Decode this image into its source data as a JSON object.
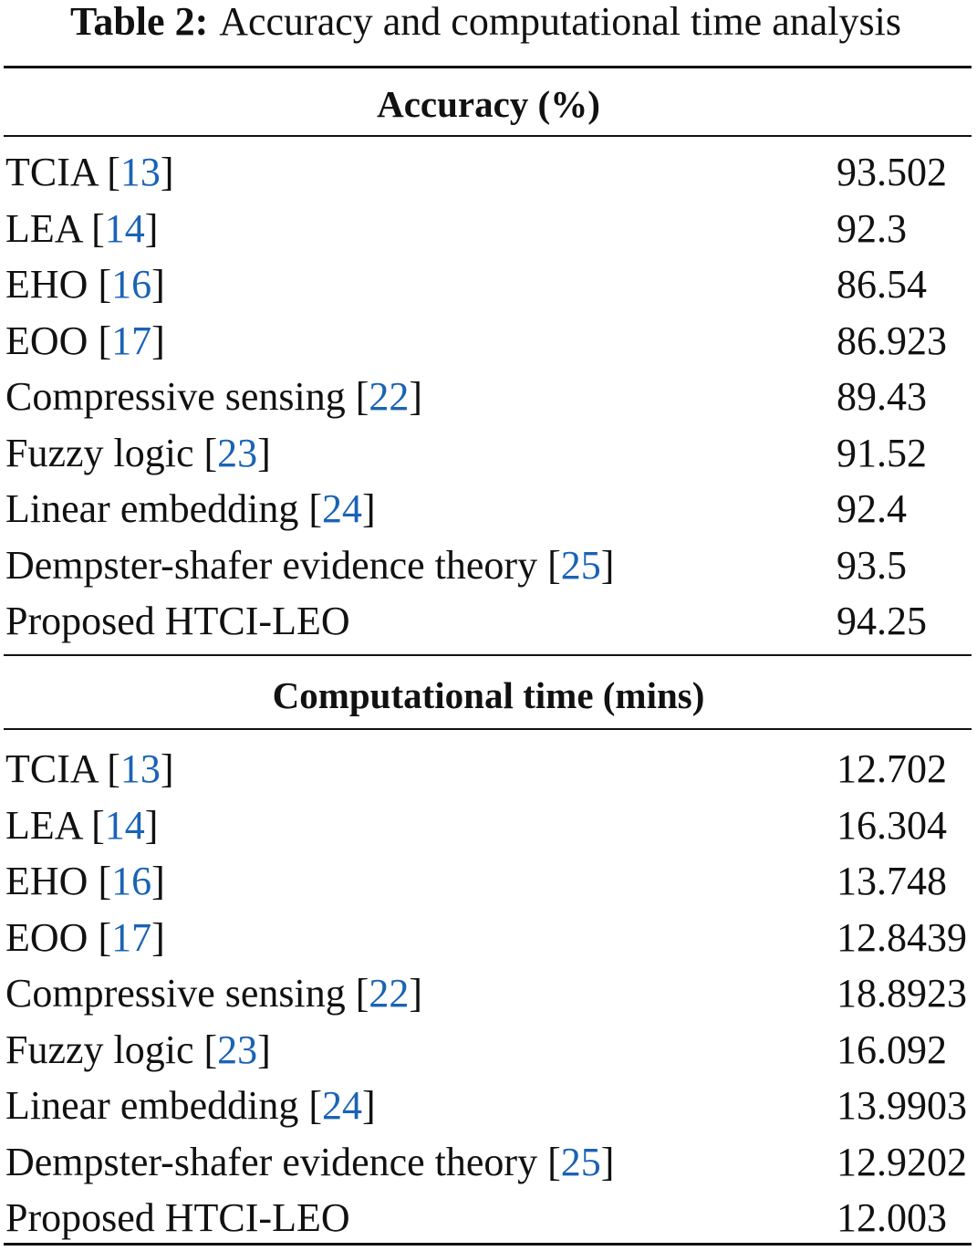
{
  "caption": {
    "label": "Table 2:",
    "text": "Accuracy and computational time analysis"
  },
  "sections": [
    {
      "heading": "Accuracy (%)",
      "rows": [
        {
          "method": "TCIA",
          "ref": "13",
          "value": "93.502"
        },
        {
          "method": "LEA",
          "ref": "14",
          "value": "92.3"
        },
        {
          "method": "EHO",
          "ref": "16",
          "value": "86.54"
        },
        {
          "method": "EOO",
          "ref": "17",
          "value": "86.923"
        },
        {
          "method": "Compressive sensing",
          "ref": "22",
          "value": "89.43"
        },
        {
          "method": "Fuzzy logic",
          "ref": "23",
          "value": "91.52"
        },
        {
          "method": "Linear embedding",
          "ref": "24",
          "value": "92.4"
        },
        {
          "method": "Dempster-shafer evidence theory",
          "ref": "25",
          "value": "93.5"
        },
        {
          "method": "Proposed HTCI-LEO",
          "ref": "",
          "value": "94.25"
        }
      ]
    },
    {
      "heading": "Computational time (mins)",
      "rows": [
        {
          "method": "TCIA",
          "ref": "13",
          "value": "12.702"
        },
        {
          "method": "LEA",
          "ref": "14",
          "value": "16.304"
        },
        {
          "method": "EHO",
          "ref": "16",
          "value": "13.748"
        },
        {
          "method": "EOO",
          "ref": "17",
          "value": "12.8439"
        },
        {
          "method": "Compressive sensing",
          "ref": "22",
          "value": "18.8923"
        },
        {
          "method": "Fuzzy logic",
          "ref": "23",
          "value": "16.092"
        },
        {
          "method": "Linear embedding",
          "ref": "24",
          "value": "13.9903"
        },
        {
          "method": "Dempster-shafer evidence theory",
          "ref": "25",
          "value": "12.9202"
        },
        {
          "method": "Proposed HTCI-LEO",
          "ref": "",
          "value": "12.003"
        }
      ]
    }
  ],
  "colors": {
    "citation_link": "#1a63b5",
    "text": "#111111",
    "background": "#ffffff"
  }
}
